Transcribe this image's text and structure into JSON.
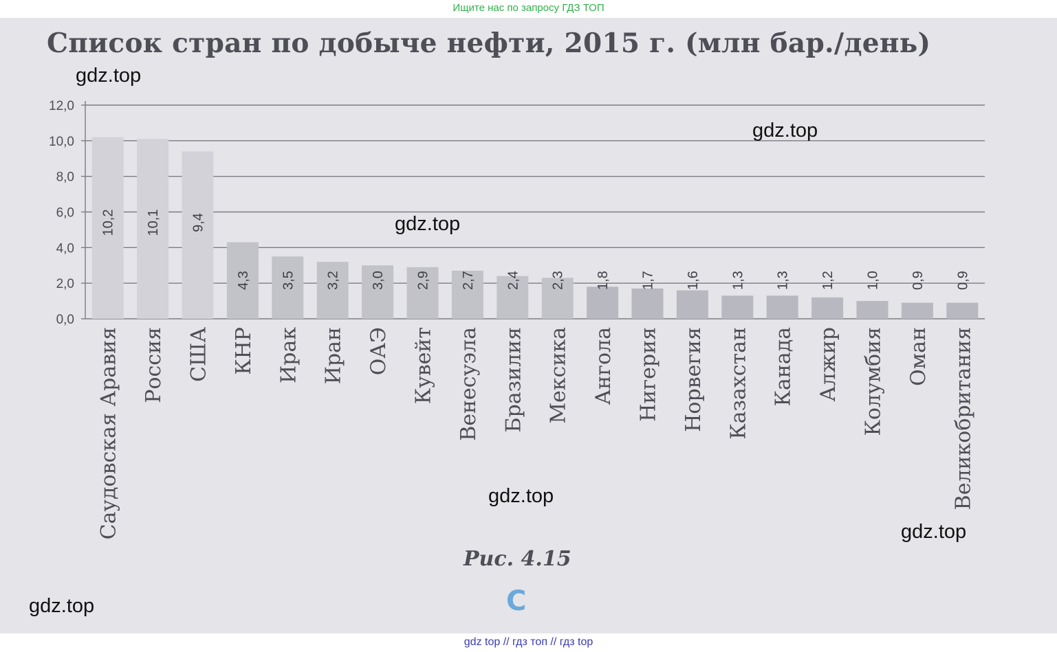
{
  "top_banner": "Ищите нас по запросу ГДЗ ТОП",
  "bottom_banner": "gdz top  //  гдз топ  //  гдз top",
  "caption": "Рис. 4.15",
  "logo_letter": "C",
  "watermark_text": "gdz.top",
  "colors": {
    "page_background": "#e4e4e9",
    "bar_fill": "#c9c9cf",
    "text_dark": "#4e4e56",
    "top_banner": "#2fb24a",
    "bottom_banner": "#3a3ab4",
    "logo": "#6aa9d9"
  },
  "chart_data": {
    "type": "bar",
    "title": "Список стран по добыче нефти, 2015 г. (млн бар./день)",
    "categories": [
      "Саудовская Аравия",
      "Россия",
      "США",
      "КНР",
      "Ирак",
      "Иран",
      "ОАЭ",
      "Кувейт",
      "Венесуэла",
      "Бразилия",
      "Мексика",
      "Ангола",
      "Нигерия",
      "Норвегия",
      "Казахстан",
      "Канада",
      "Алжир",
      "Колумбия",
      "Оман",
      "Великобритания"
    ],
    "values": [
      10.2,
      10.1,
      9.4,
      4.3,
      3.5,
      3.2,
      3.0,
      2.9,
      2.7,
      2.4,
      2.3,
      1.8,
      1.7,
      1.6,
      1.3,
      1.3,
      1.2,
      1.0,
      0.9,
      0.9
    ],
    "data_labels": [
      "10,2",
      "10,1",
      "9,4",
      "4,3",
      "3,5",
      "3,2",
      "3,0",
      "2,9",
      "2,7",
      "2,4",
      "2,3",
      "1,8",
      "1,7",
      "1,6",
      "1,3",
      "1,3",
      "1,2",
      "1,0",
      "0,9",
      "0,9"
    ],
    "yticks": [
      "0,0",
      "2,0",
      "4,0",
      "6,0",
      "8,0",
      "10,0",
      "12,0"
    ],
    "ylim": [
      0,
      12
    ],
    "xlabel": "",
    "ylabel": "",
    "grid": true,
    "legend": false
  }
}
